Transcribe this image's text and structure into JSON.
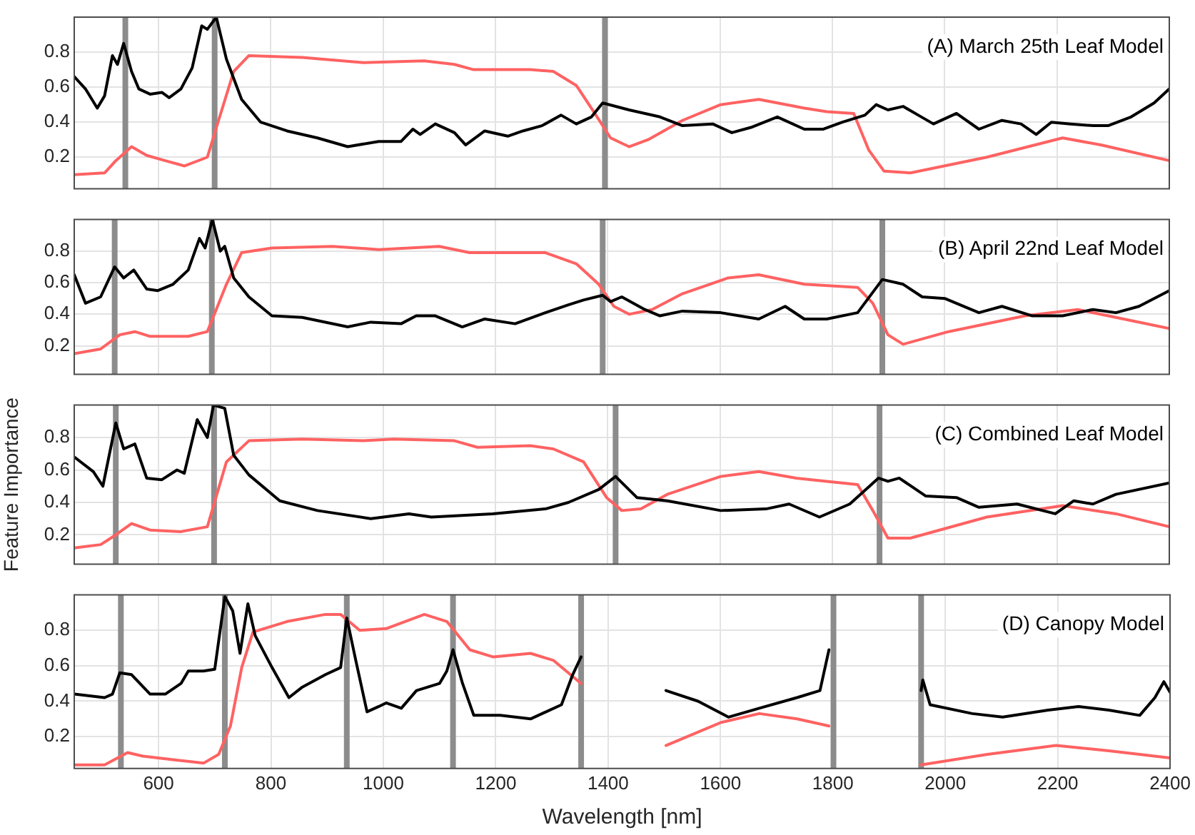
{
  "chart_data": [
    {
      "type": "line",
      "xlim": [
        450,
        2400
      ],
      "xticks": [
        600,
        800,
        1000,
        1200,
        1400,
        1600,
        1800,
        2000,
        2200,
        2400
      ],
      "ylim": [
        0.02,
        1
      ],
      "yticks": [
        0.2,
        0.4,
        0.6,
        0.8
      ],
      "grid": true,
      "tick_labels": "y",
      "annotations": [
        "(A) March 25th Leaf Model"
      ],
      "ref_lines": [
        {
          "axis": "x",
          "value": 541,
          "color": "#8c8c8c"
        },
        {
          "axis": "x",
          "value": 700,
          "color": "#8c8c8c"
        },
        {
          "axis": "x",
          "value": 1395,
          "color": "#8c8c8c"
        }
      ],
      "series": [
        {
          "color": "#000000",
          "x": [
            450,
            470,
            491,
            504,
            518,
            527,
            538,
            552,
            565,
            585,
            606,
            619,
            640,
            660,
            677,
            687,
            703,
            721,
            748,
            782,
            829,
            883,
            937,
            992,
            1032,
            1053,
            1066,
            1093,
            1127,
            1147,
            1181,
            1222,
            1249,
            1283,
            1317,
            1344,
            1371,
            1391,
            1438,
            1493,
            1533,
            1587,
            1621,
            1655,
            1702,
            1750,
            1784,
            1818,
            1858,
            1878,
            1899,
            1926,
            1953,
            1980,
            2021,
            2061,
            2102,
            2136,
            2163,
            2190,
            2224,
            2264,
            2291,
            2332,
            2373,
            2400
          ],
          "values": [
            0.66,
            0.59,
            0.48,
            0.55,
            0.78,
            0.73,
            0.85,
            0.69,
            0.59,
            0.56,
            0.57,
            0.54,
            0.59,
            0.71,
            0.95,
            0.93,
            1.0,
            0.76,
            0.53,
            0.4,
            0.35,
            0.31,
            0.26,
            0.29,
            0.29,
            0.36,
            0.33,
            0.39,
            0.34,
            0.27,
            0.35,
            0.32,
            0.35,
            0.38,
            0.44,
            0.39,
            0.43,
            0.51,
            0.47,
            0.43,
            0.38,
            0.39,
            0.34,
            0.37,
            0.43,
            0.36,
            0.36,
            0.4,
            0.44,
            0.5,
            0.47,
            0.49,
            0.44,
            0.39,
            0.45,
            0.36,
            0.41,
            0.39,
            0.33,
            0.4,
            0.39,
            0.38,
            0.38,
            0.43,
            0.51,
            0.59
          ]
        },
        {
          "color": "#ff6262",
          "x": [
            450,
            504,
            524,
            552,
            579,
            612,
            646,
            687,
            707,
            734,
            761,
            856,
            965,
            1073,
            1127,
            1161,
            1262,
            1303,
            1344,
            1377,
            1405,
            1438,
            1472,
            1533,
            1601,
            1669,
            1750,
            1790,
            1838,
            1865,
            1892,
            1939,
            2075,
            2210,
            2278,
            2400
          ],
          "values": [
            0.1,
            0.11,
            0.18,
            0.26,
            0.21,
            0.18,
            0.15,
            0.2,
            0.41,
            0.69,
            0.78,
            0.77,
            0.74,
            0.75,
            0.73,
            0.7,
            0.7,
            0.69,
            0.61,
            0.45,
            0.31,
            0.26,
            0.3,
            0.41,
            0.5,
            0.53,
            0.48,
            0.46,
            0.45,
            0.24,
            0.12,
            0.11,
            0.2,
            0.31,
            0.27,
            0.18
          ]
        }
      ]
    },
    {
      "type": "line",
      "xlim": [
        450,
        2400
      ],
      "xticks": [
        600,
        800,
        1000,
        1200,
        1400,
        1600,
        1800,
        2000,
        2200,
        2400
      ],
      "ylim": [
        0.02,
        1
      ],
      "yticks": [
        0.2,
        0.4,
        0.6,
        0.8
      ],
      "grid": true,
      "tick_labels": "y",
      "annotations": [
        "(B) April 22nd Leaf Model"
      ],
      "ref_lines": [
        {
          "axis": "x",
          "value": 522,
          "color": "#8c8c8c"
        },
        {
          "axis": "x",
          "value": 695,
          "color": "#8c8c8c"
        },
        {
          "axis": "x",
          "value": 1391,
          "color": "#8c8c8c"
        },
        {
          "axis": "x",
          "value": 1889,
          "color": "#8c8c8c"
        }
      ],
      "series": [
        {
          "color": "#000000",
          "x": [
            450,
            470,
            497,
            522,
            538,
            556,
            579,
            599,
            626,
            653,
            673,
            683,
            696,
            710,
            718,
            734,
            761,
            802,
            856,
            937,
            978,
            1032,
            1059,
            1093,
            1141,
            1181,
            1235,
            1289,
            1330,
            1357,
            1391,
            1405,
            1425,
            1466,
            1493,
            1533,
            1601,
            1669,
            1716,
            1750,
            1790,
            1845,
            1889,
            1926,
            1960,
            2000,
            2061,
            2102,
            2156,
            2210,
            2264,
            2305,
            2346,
            2400
          ],
          "values": [
            0.65,
            0.47,
            0.51,
            0.7,
            0.63,
            0.68,
            0.56,
            0.55,
            0.59,
            0.68,
            0.88,
            0.82,
            1.0,
            0.8,
            0.83,
            0.63,
            0.51,
            0.39,
            0.38,
            0.32,
            0.35,
            0.34,
            0.39,
            0.39,
            0.32,
            0.37,
            0.34,
            0.41,
            0.46,
            0.49,
            0.52,
            0.48,
            0.51,
            0.43,
            0.39,
            0.42,
            0.41,
            0.37,
            0.45,
            0.37,
            0.37,
            0.41,
            0.62,
            0.59,
            0.51,
            0.5,
            0.41,
            0.45,
            0.39,
            0.39,
            0.43,
            0.41,
            0.45,
            0.55
          ]
        },
        {
          "color": "#ff6262",
          "x": [
            450,
            497,
            531,
            558,
            585,
            653,
            687,
            721,
            748,
            802,
            910,
            992,
            1100,
            1154,
            1289,
            1344,
            1384,
            1411,
            1438,
            1479,
            1533,
            1614,
            1669,
            1750,
            1845,
            1872,
            1899,
            1926,
            2007,
            2143,
            2237,
            2291,
            2400
          ],
          "values": [
            0.15,
            0.18,
            0.27,
            0.29,
            0.26,
            0.26,
            0.29,
            0.59,
            0.79,
            0.82,
            0.83,
            0.81,
            0.83,
            0.79,
            0.79,
            0.72,
            0.59,
            0.45,
            0.4,
            0.43,
            0.53,
            0.63,
            0.65,
            0.59,
            0.57,
            0.47,
            0.27,
            0.21,
            0.29,
            0.39,
            0.43,
            0.39,
            0.31
          ]
        }
      ]
    },
    {
      "type": "line",
      "xlim": [
        450,
        2400
      ],
      "xticks": [
        600,
        800,
        1000,
        1200,
        1400,
        1600,
        1800,
        2000,
        2200,
        2400
      ],
      "ylim": [
        0.02,
        1
      ],
      "yticks": [
        0.2,
        0.4,
        0.6,
        0.8
      ],
      "grid": true,
      "tick_labels": "y",
      "ylabel": "Feature Importance",
      "annotations": [
        "(C) Combined Leaf Model"
      ],
      "ref_lines": [
        {
          "axis": "x",
          "value": 524,
          "color": "#8c8c8c"
        },
        {
          "axis": "x",
          "value": 699,
          "color": "#8c8c8c"
        },
        {
          "axis": "x",
          "value": 1414,
          "color": "#8c8c8c"
        },
        {
          "axis": "x",
          "value": 1884,
          "color": "#8c8c8c"
        }
      ],
      "series": [
        {
          "color": "#000000",
          "x": [
            450,
            484,
            501,
            524,
            538,
            558,
            579,
            606,
            633,
            646,
            669,
            687,
            698,
            718,
            734,
            761,
            816,
            883,
            978,
            1046,
            1086,
            1195,
            1289,
            1330,
            1384,
            1414,
            1452,
            1506,
            1601,
            1682,
            1723,
            1777,
            1831,
            1882,
            1899,
            1919,
            1966,
            2021,
            2061,
            2129,
            2197,
            2230,
            2264,
            2305,
            2400
          ],
          "values": [
            0.68,
            0.59,
            0.5,
            0.89,
            0.73,
            0.76,
            0.55,
            0.54,
            0.6,
            0.58,
            0.91,
            0.8,
            1.0,
            0.98,
            0.69,
            0.57,
            0.41,
            0.35,
            0.3,
            0.33,
            0.31,
            0.33,
            0.36,
            0.4,
            0.48,
            0.56,
            0.43,
            0.41,
            0.35,
            0.36,
            0.39,
            0.31,
            0.39,
            0.55,
            0.53,
            0.55,
            0.44,
            0.43,
            0.37,
            0.39,
            0.33,
            0.41,
            0.39,
            0.45,
            0.52
          ]
        },
        {
          "color": "#ff6262",
          "x": [
            450,
            497,
            524,
            552,
            585,
            640,
            687,
            721,
            761,
            856,
            965,
            1019,
            1127,
            1168,
            1262,
            1303,
            1357,
            1398,
            1425,
            1459,
            1506,
            1601,
            1669,
            1736,
            1790,
            1845,
            1872,
            1899,
            1939,
            2075,
            2210,
            2305,
            2400
          ],
          "values": [
            0.12,
            0.14,
            0.2,
            0.27,
            0.23,
            0.22,
            0.25,
            0.65,
            0.78,
            0.79,
            0.78,
            0.79,
            0.78,
            0.74,
            0.75,
            0.73,
            0.65,
            0.43,
            0.35,
            0.36,
            0.45,
            0.56,
            0.59,
            0.55,
            0.53,
            0.51,
            0.35,
            0.18,
            0.18,
            0.31,
            0.38,
            0.33,
            0.25
          ]
        }
      ]
    },
    {
      "type": "line",
      "xlim": [
        450,
        2400
      ],
      "xticks": [
        600,
        800,
        1000,
        1200,
        1400,
        1600,
        1800,
        2000,
        2200,
        2400
      ],
      "ylim": [
        0.02,
        1
      ],
      "yticks": [
        0.2,
        0.4,
        0.6,
        0.8
      ],
      "grid": true,
      "xlabel": "Wavelength [nm]",
      "annotations": [
        "(D) Canopy Model"
      ],
      "ref_lines": [
        {
          "axis": "x",
          "value": 533,
          "color": "#8c8c8c"
        },
        {
          "axis": "x",
          "value": 718,
          "color": "#8c8c8c"
        },
        {
          "axis": "x",
          "value": 935,
          "color": "#8c8c8c"
        },
        {
          "axis": "x",
          "value": 1124,
          "color": "#8c8c8c"
        },
        {
          "axis": "x",
          "value": 1352,
          "color": "#8c8c8c"
        },
        {
          "axis": "x",
          "value": 1801,
          "color": "#8c8c8c"
        },
        {
          "axis": "x",
          "value": 1957,
          "color": "#8c8c8c"
        }
      ],
      "series": [
        {
          "color": "#000000",
          "x": [
            450,
            504,
            518,
            531,
            552,
            585,
            612,
            640,
            653,
            680,
            700,
            718,
            732,
            745,
            759,
            772,
            802,
            832,
            856,
            897,
            924,
            935,
            951,
            971,
            992,
            1005,
            1032,
            1059,
            1100,
            1113,
            1124,
            1141,
            1161,
            1208,
            1262,
            1317,
            1337,
            1352,
            1430,
            1503,
            1560,
            1614,
            1669,
            1736,
            1777,
            1793,
            1875,
            1957,
            1960,
            1973,
            2048,
            2102,
            2183,
            2237,
            2291,
            2346,
            2373,
            2389,
            2400
          ],
          "values": [
            0.44,
            0.42,
            0.44,
            0.56,
            0.55,
            0.44,
            0.44,
            0.5,
            0.57,
            0.57,
            0.58,
            0.99,
            0.91,
            0.67,
            0.95,
            0.77,
            0.59,
            0.42,
            0.48,
            0.55,
            0.59,
            0.87,
            0.63,
            0.34,
            0.37,
            0.39,
            0.36,
            0.46,
            0.5,
            0.57,
            0.69,
            0.5,
            0.32,
            0.32,
            0.3,
            0.38,
            0.55,
            0.65,
            null,
            0.46,
            0.4,
            0.31,
            0.36,
            0.42,
            0.46,
            0.69,
            null,
            0.46,
            0.52,
            0.38,
            0.33,
            0.31,
            0.35,
            0.37,
            0.35,
            0.32,
            0.42,
            0.51,
            0.45
          ]
        },
        {
          "color": "#ff6262",
          "x": [
            450,
            504,
            545,
            572,
            626,
            680,
            707,
            728,
            748,
            768,
            829,
            897,
            924,
            958,
            1005,
            1073,
            1113,
            1154,
            1195,
            1262,
            1303,
            1352,
            1430,
            1503,
            1601,
            1669,
            1736,
            1793,
            1875,
            1957,
            2075,
            2197,
            2291,
            2400
          ],
          "values": [
            0.04,
            0.04,
            0.11,
            0.09,
            0.07,
            0.05,
            0.1,
            0.26,
            0.59,
            0.79,
            0.85,
            0.89,
            0.89,
            0.8,
            0.81,
            0.89,
            0.85,
            0.69,
            0.65,
            0.67,
            0.63,
            0.5,
            null,
            0.15,
            0.28,
            0.33,
            0.3,
            0.26,
            null,
            0.04,
            0.1,
            0.15,
            0.12,
            0.08
          ]
        }
      ]
    }
  ]
}
